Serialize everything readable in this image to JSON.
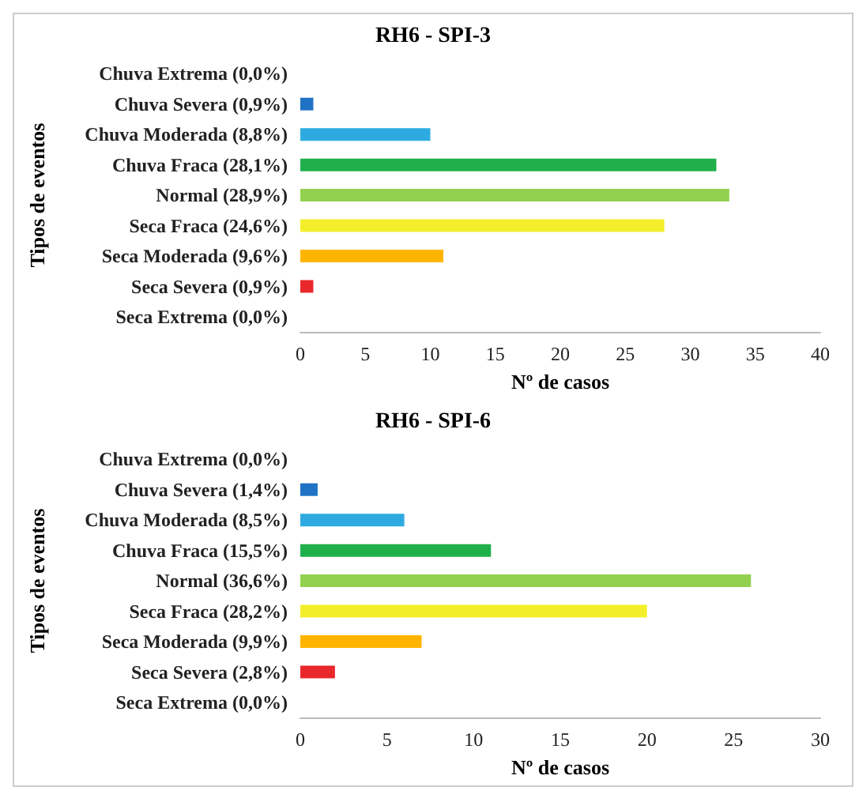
{
  "chart_data": [
    {
      "type": "bar",
      "orientation": "horizontal",
      "title": "RH6 - SPI-3",
      "xlabel": "Nº de casos",
      "ylabel": "Tipos de eventos",
      "categories": [
        "Chuva Extrema (0,0%)",
        "Chuva Severa (0,9%)",
        "Chuva Moderada (8,8%)",
        "Chuva Fraca (28,1%)",
        "Normal (28,9%)",
        "Seca Fraca (24,6%)",
        "Seca Moderada (9,6%)",
        "Seca Severa (0,9%)",
        "Seca Extrema (0,0%)"
      ],
      "values": [
        0,
        1,
        10,
        32,
        33,
        28,
        11,
        1,
        0
      ],
      "colors": [
        "#0a3d7a",
        "#1f72c4",
        "#2eaae1",
        "#1fb04b",
        "#92d050",
        "#f2ef2a",
        "#ffb400",
        "#e8282b",
        "#9c0a0a"
      ],
      "xlim": [
        0,
        40
      ],
      "xticks": [
        0,
        5,
        10,
        15,
        20,
        25,
        30,
        35,
        40
      ],
      "grid": false
    },
    {
      "type": "bar",
      "orientation": "horizontal",
      "title": "RH6 - SPI-6",
      "xlabel": "Nº de casos",
      "ylabel": "Tipos de eventos",
      "categories": [
        "Chuva Extrema (0,0%)",
        "Chuva Severa (1,4%)",
        "Chuva Moderada (8,5%)",
        "Chuva Fraca (15,5%)",
        "Normal (36,6%)",
        "Seca Fraca (28,2%)",
        "Seca Moderada (9,9%)",
        "Seca Severa (2,8%)",
        "Seca Extrema (0,0%)"
      ],
      "values": [
        0,
        1,
        6,
        11,
        26,
        20,
        7,
        2,
        0
      ],
      "colors": [
        "#0a3d7a",
        "#1f72c4",
        "#2eaae1",
        "#1fb04b",
        "#92d050",
        "#f2ef2a",
        "#ffb400",
        "#e8282b",
        "#9c0a0a"
      ],
      "xlim": [
        0,
        30
      ],
      "xticks": [
        0,
        5,
        10,
        15,
        20,
        25,
        30
      ],
      "grid": false
    }
  ]
}
